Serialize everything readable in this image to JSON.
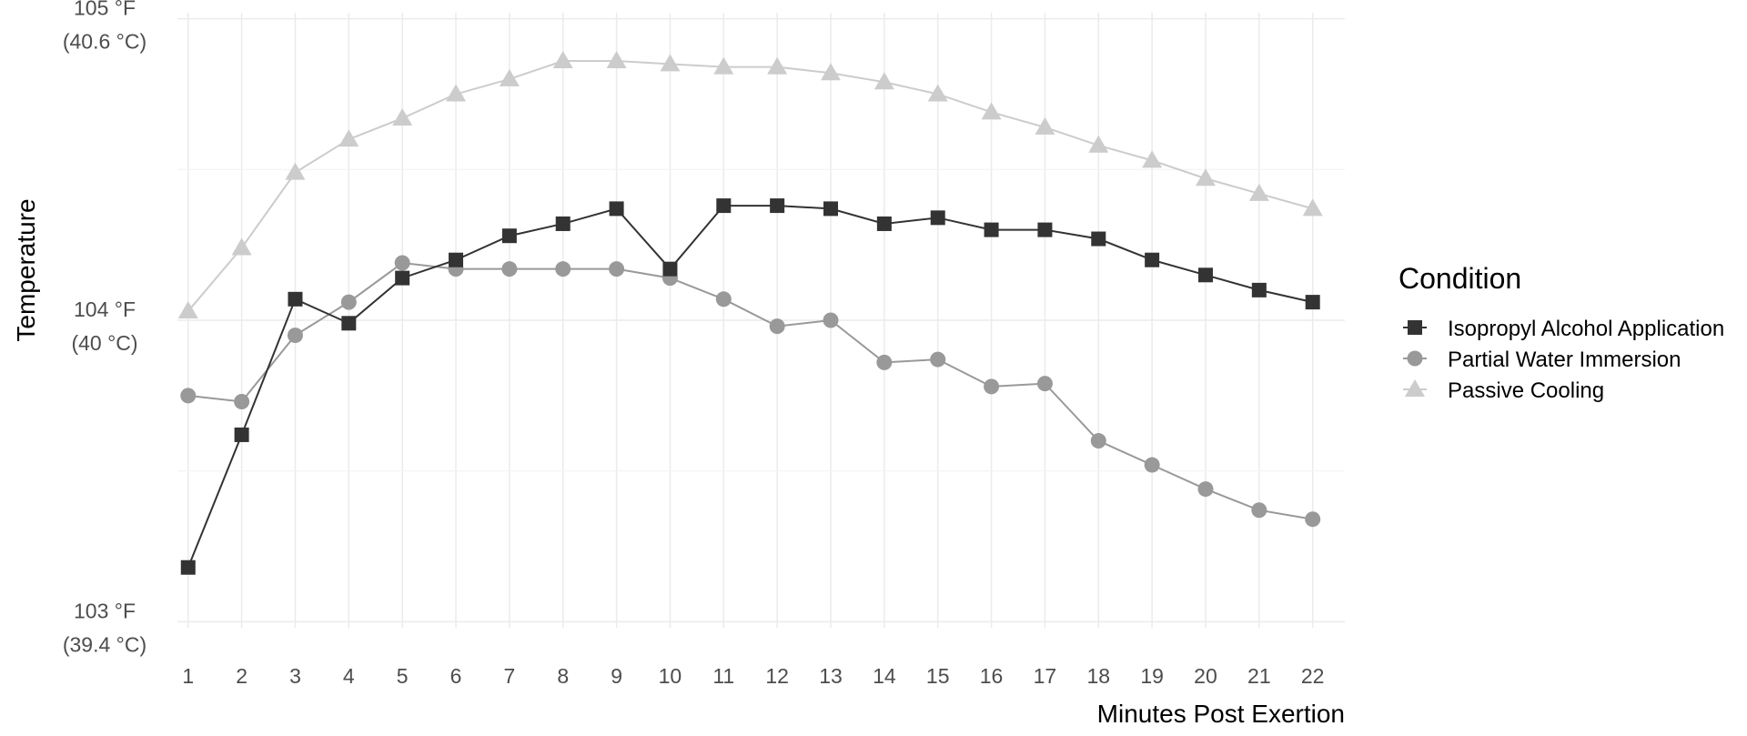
{
  "chart_data": {
    "type": "line",
    "xlabel": "Minutes Post Exertion",
    "ylabel": "Temperature",
    "x": [
      1,
      2,
      3,
      4,
      5,
      6,
      7,
      8,
      9,
      10,
      11,
      12,
      13,
      14,
      15,
      16,
      17,
      18,
      19,
      20,
      21,
      22
    ],
    "xlim": [
      0.8,
      22.6
    ],
    "ylim": [
      102.98,
      105.02
    ],
    "y_ticks": [
      {
        "value": 105,
        "line1": "105 °F",
        "line2": "(40.6 °C)"
      },
      {
        "value": 104,
        "line1": "104 °F",
        "line2": "(40 °C)"
      },
      {
        "value": 103,
        "line1": "103 °F",
        "line2": "(39.4 °C)"
      }
    ],
    "y_minor_gridlines": [
      103.5,
      104.5
    ],
    "grid": true,
    "legend": {
      "title": "Condition",
      "position": "right"
    },
    "series": [
      {
        "name": "Isopropyl Alcohol Application",
        "marker": "square",
        "color": "#333333",
        "values": [
          103.18,
          103.62,
          104.07,
          103.99,
          104.14,
          104.2,
          104.28,
          104.32,
          104.37,
          104.17,
          104.38,
          104.38,
          104.37,
          104.32,
          104.34,
          104.3,
          104.3,
          104.27,
          104.2,
          104.15,
          104.1,
          104.06
        ]
      },
      {
        "name": "Partial Water Immersion",
        "marker": "circle",
        "color": "#999999",
        "values": [
          103.75,
          103.73,
          103.95,
          104.06,
          104.19,
          104.17,
          104.17,
          104.17,
          104.17,
          104.14,
          104.07,
          103.98,
          104.0,
          103.86,
          103.87,
          103.78,
          103.79,
          103.6,
          103.52,
          103.44,
          103.37,
          103.34
        ]
      },
      {
        "name": "Passive Cooling",
        "marker": "triangle",
        "color": "#cccccc",
        "values": [
          104.03,
          104.24,
          104.49,
          104.6,
          104.67,
          104.75,
          104.8,
          104.86,
          104.86,
          104.85,
          104.84,
          104.84,
          104.82,
          104.79,
          104.75,
          104.69,
          104.64,
          104.58,
          104.53,
          104.47,
          104.42,
          104.37
        ]
      }
    ]
  }
}
